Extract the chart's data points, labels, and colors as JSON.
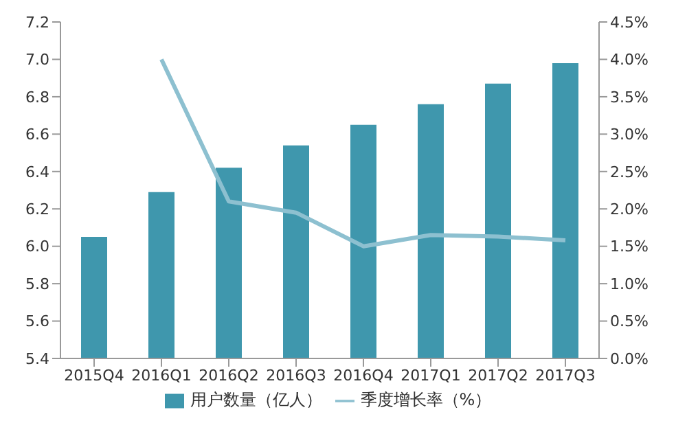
{
  "chart_data": {
    "type": "bar",
    "categories": [
      "2015Q4",
      "2016Q1",
      "2016Q2",
      "2016Q3",
      "2016Q4",
      "2017Q1",
      "2017Q2",
      "2017Q3"
    ],
    "series": [
      {
        "name": "用户数量（亿人）",
        "color": "#3f97ad",
        "values": [
          6.05,
          6.29,
          6.42,
          6.54,
          6.65,
          6.76,
          6.87,
          6.98
        ]
      },
      {
        "name": "季度增长率（%）",
        "type": "line",
        "axis": "y2",
        "color": "#8dc0d0",
        "values": [
          null,
          4.0,
          2.1,
          1.95,
          1.5,
          1.65,
          1.63,
          1.58
        ]
      }
    ],
    "ylim": [
      5.4,
      7.2
    ],
    "yticks": [
      {
        "value": 5.4,
        "label": "5.4"
      },
      {
        "value": 5.6,
        "label": "5.6"
      },
      {
        "value": 5.8,
        "label": "5.8"
      },
      {
        "value": 6.0,
        "label": "6.0"
      },
      {
        "value": 6.2,
        "label": "6.2"
      },
      {
        "value": 6.4,
        "label": "6.4"
      },
      {
        "value": 6.6,
        "label": "6.6"
      },
      {
        "value": 6.8,
        "label": "6.8"
      },
      {
        "value": 7.0,
        "label": "7.0"
      },
      {
        "value": 7.2,
        "label": "7.2"
      }
    ],
    "y2lim": [
      0,
      4.5
    ],
    "y2ticks": [
      {
        "value": 0,
        "label": "0.0%"
      },
      {
        "value": 0.5,
        "label": "0.5%"
      },
      {
        "value": 1.0,
        "label": "1.0%"
      },
      {
        "value": 1.5,
        "label": "1.5%"
      },
      {
        "value": 2.0,
        "label": "2.0%"
      },
      {
        "value": 2.5,
        "label": "2.5%"
      },
      {
        "value": 3.0,
        "label": "3.0%"
      },
      {
        "value": 3.5,
        "label": "3.5%"
      },
      {
        "value": 4.0,
        "label": "4.0%"
      },
      {
        "value": 4.5,
        "label": "4.5%"
      }
    ],
    "grid": false,
    "legend": "bottom",
    "marker": "none"
  }
}
